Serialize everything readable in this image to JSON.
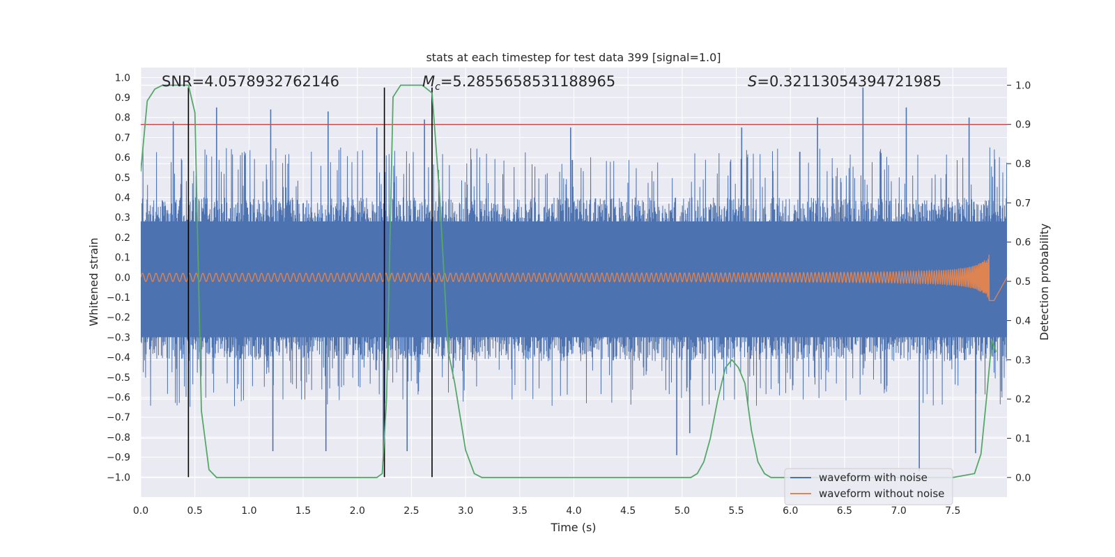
{
  "chart_data": {
    "type": "line",
    "title": "stats at each timestep for test data 399 [signal=1.0]",
    "xlabel": "Time (s)",
    "ylabel": "Whitened strain",
    "ylabel_right": "Detection probability",
    "xlim": [
      0.0,
      8.0
    ],
    "ylim": [
      -1.1,
      1.05
    ],
    "ylim_right": [
      -0.05,
      1.045
    ],
    "x_ticks": [
      "0.0",
      "0.5",
      "1.0",
      "1.5",
      "2.0",
      "2.5",
      "3.0",
      "3.5",
      "4.0",
      "4.5",
      "5.0",
      "5.5",
      "6.0",
      "6.5",
      "7.0",
      "7.5"
    ],
    "y_ticks": [
      "1.0",
      "0.9",
      "0.8",
      "0.7",
      "0.6",
      "0.5",
      "0.4",
      "0.3",
      "0.2",
      "0.1",
      "0.0",
      "−0.1",
      "−0.2",
      "−0.3",
      "−0.4",
      "−0.5",
      "−0.6",
      "−0.7",
      "−0.8",
      "−0.9",
      "−1.0"
    ],
    "y_ticks_right": [
      "1.0",
      "0.9",
      "0.8",
      "0.7",
      "0.6",
      "0.5",
      "0.4",
      "0.3",
      "0.2",
      "0.1",
      "0.0"
    ],
    "grid": true,
    "annotations": {
      "snr": "SNR=4.0578932762146",
      "mc_symbol": "M",
      "mc_sub": "c",
      "mc_value": "=5.2855658531188965",
      "s_symbol": "S",
      "s_value": "=0.32113054394721985"
    },
    "threshold_line": {
      "axis": "right",
      "value": 0.9,
      "color": "#c44e52"
    },
    "vertical_lines": {
      "x": [
        0.44,
        2.25,
        2.69
      ],
      "ymin": -1.0,
      "ymax": 0.95,
      "color": "#000000"
    },
    "legend": {
      "placement": "lower-right",
      "entries": [
        "waveform with noise",
        "waveform without noise"
      ]
    },
    "series": [
      {
        "name": "waveform with noise",
        "color": "#4c72b0",
        "x_range": [
          0.0,
          8.0
        ],
        "envelope_upper": 0.4,
        "envelope_lower": -0.42,
        "y_extent": [
          -1.0,
          0.95
        ],
        "peaks": [
          {
            "x": 0.3,
            "y": 0.78
          },
          {
            "x": 0.7,
            "y": 0.85
          },
          {
            "x": 1.2,
            "y": 0.84
          },
          {
            "x": 1.73,
            "y": 0.83
          },
          {
            "x": 2.18,
            "y": 0.75
          },
          {
            "x": 2.62,
            "y": 0.79
          },
          {
            "x": 3.97,
            "y": 0.75
          },
          {
            "x": 5.55,
            "y": 0.75
          },
          {
            "x": 6.25,
            "y": 0.8
          },
          {
            "x": 6.67,
            "y": 0.95
          },
          {
            "x": 7.07,
            "y": 0.85
          },
          {
            "x": 7.65,
            "y": 0.8
          },
          {
            "x": 1.22,
            "y": -0.87
          },
          {
            "x": 1.71,
            "y": -0.87
          },
          {
            "x": 2.46,
            "y": -0.87
          },
          {
            "x": 4.95,
            "y": -0.89
          },
          {
            "x": 5.07,
            "y": -0.78
          },
          {
            "x": 7.19,
            "y": -0.97
          },
          {
            "x": 7.71,
            "y": -0.88
          },
          {
            "x": 2.24,
            "y": -0.92
          }
        ]
      },
      {
        "name": "waveform without noise",
        "color": "#dd8452",
        "x_range": [
          0.0,
          7.88
        ],
        "amplitude_start": 0.02,
        "amplitude_peak": 0.12,
        "peak_time": 7.84
      },
      {
        "name": "detection probability",
        "axis": "right",
        "color": "#55a868",
        "x": [
          0.0,
          0.06,
          0.13,
          0.2,
          0.3,
          0.44,
          0.5,
          0.56,
          0.63,
          0.7,
          1.0,
          1.5,
          2.0,
          2.18,
          2.23,
          2.27,
          2.33,
          2.4,
          2.5,
          2.6,
          2.69,
          2.76,
          2.84,
          2.9,
          3.0,
          3.08,
          3.15,
          3.3,
          4.0,
          4.5,
          5.0,
          5.08,
          5.14,
          5.2,
          5.26,
          5.33,
          5.4,
          5.46,
          5.52,
          5.58,
          5.64,
          5.7,
          5.76,
          5.82,
          6.0,
          7.0,
          7.5,
          7.7,
          7.76,
          7.81,
          7.86,
          7.9
        ],
        "y": [
          0.78,
          0.96,
          0.99,
          1.0,
          1.0,
          1.0,
          0.93,
          0.17,
          0.02,
          0.0,
          0.0,
          0.0,
          0.0,
          0.0,
          0.01,
          0.2,
          0.97,
          1.0,
          1.0,
          1.0,
          0.98,
          0.72,
          0.32,
          0.24,
          0.07,
          0.01,
          0.0,
          0.0,
          0.0,
          0.0,
          0.0,
          0.0,
          0.01,
          0.04,
          0.1,
          0.2,
          0.28,
          0.3,
          0.28,
          0.24,
          0.12,
          0.04,
          0.01,
          0.0,
          0.0,
          0.0,
          0.0,
          0.01,
          0.06,
          0.2,
          0.35,
          0.32
        ]
      }
    ]
  }
}
